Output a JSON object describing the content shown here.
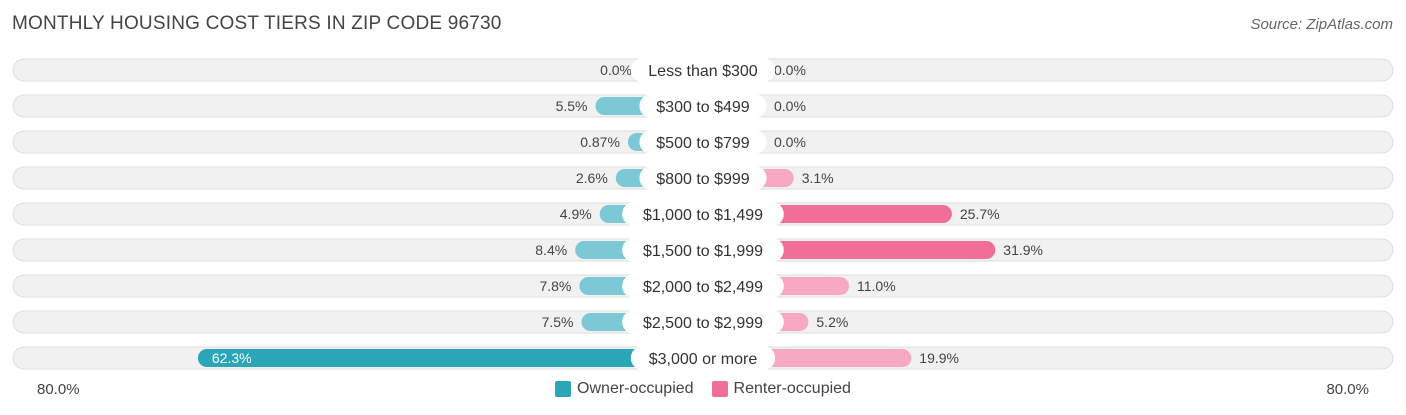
{
  "title": "MONTHLY HOUSING COST TIERS IN ZIP CODE 96730",
  "source": "Source: ZipAtlas.com",
  "colors": {
    "owner": "#7cc8d4",
    "owner_strong": "#2aa6b8",
    "renter": "#f7a8c2",
    "renter_strong": "#f06f99"
  },
  "chart_data": {
    "type": "bar",
    "orientation": "diverging-horizontal",
    "categories": [
      "Less than $300",
      "$300 to $499",
      "$500 to $799",
      "$800 to $999",
      "$1,000 to $1,499",
      "$1,500 to $1,999",
      "$2,000 to $2,499",
      "$2,500 to $2,999",
      "$3,000 or more"
    ],
    "series": [
      {
        "name": "Owner-occupied",
        "values": [
          0.0,
          5.5,
          0.87,
          2.6,
          4.9,
          8.4,
          7.8,
          7.5,
          62.3
        ],
        "labels": [
          "0.0%",
          "5.5%",
          "0.87%",
          "2.6%",
          "4.9%",
          "8.4%",
          "7.8%",
          "7.5%",
          "62.3%"
        ]
      },
      {
        "name": "Renter-occupied",
        "values": [
          0.0,
          0.0,
          0.0,
          3.1,
          25.7,
          31.9,
          11.0,
          5.2,
          19.9
        ],
        "labels": [
          "0.0%",
          "0.0%",
          "0.0%",
          "3.1%",
          "25.7%",
          "31.9%",
          "11.0%",
          "5.2%",
          "19.9%"
        ]
      }
    ],
    "axis": {
      "min_label": "80.0%",
      "max_label": "80.0%",
      "range": [
        80,
        80
      ]
    },
    "legend_position": "bottom-center"
  }
}
